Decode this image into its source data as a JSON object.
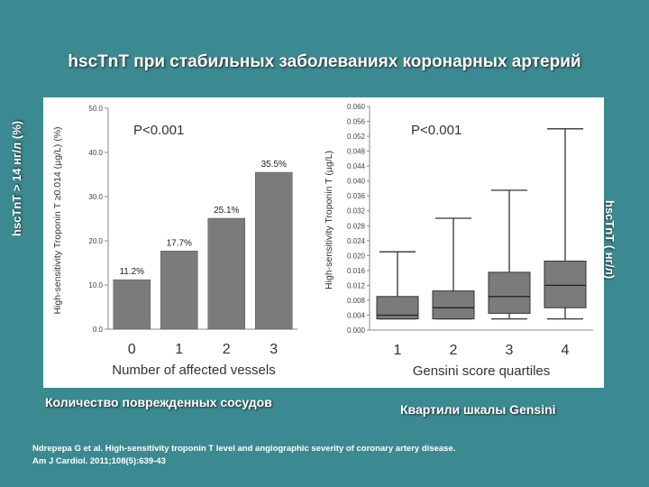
{
  "slide": {
    "title": "hscTnT при стабильных заболеваниях коронарных артерий",
    "left_side_label": "hscTnT > 14 нг/л (%)",
    "right_side_label": "hscTnT ( нг/л)",
    "left_caption": "Количество поврежденных сосудов",
    "right_caption": "Квартили шкалы Gensini",
    "reference_line1": "Ndrepepa G et al. High-sensitivity troponin T level and angiographic severity of coronary artery disease.",
    "reference_line2": "Am J Cardiol. 2011;108(5):639-43"
  },
  "chart_data": [
    {
      "type": "bar",
      "title": "",
      "annotation": "P<0.001",
      "xlabel": "Number of affected vessels",
      "ylabel": "High-sensitivity Troponin T ≥0.014 (µg/L) (%)",
      "categories": [
        "0",
        "1",
        "2",
        "3"
      ],
      "values": [
        11.2,
        17.7,
        25.1,
        35.5
      ],
      "value_labels": [
        "11.2%",
        "17.7%",
        "25.1%",
        "35.5%"
      ],
      "ylim": [
        0,
        50
      ],
      "yticks": [
        "0.0",
        "10.0",
        "20.0",
        "30.0",
        "40.0",
        "50.0"
      ],
      "bar_color": "#7b7b7b"
    },
    {
      "type": "box",
      "title": "",
      "annotation": "P<0.001",
      "xlabel": "Gensini score quartiles",
      "ylabel": "High-sensitivity Troponin T (µg/L)",
      "categories": [
        "1",
        "2",
        "3",
        "4"
      ],
      "boxes": [
        {
          "low": 0.003,
          "q1": 0.003,
          "median": 0.004,
          "q3": 0.009,
          "high": 0.021
        },
        {
          "low": 0.003,
          "q1": 0.003,
          "median": 0.006,
          "q3": 0.0105,
          "high": 0.03
        },
        {
          "low": 0.003,
          "q1": 0.0045,
          "median": 0.009,
          "q3": 0.0155,
          "high": 0.0375
        },
        {
          "low": 0.003,
          "q1": 0.006,
          "median": 0.012,
          "q3": 0.0185,
          "high": 0.054
        }
      ],
      "ylim": [
        0,
        0.06
      ],
      "yticks": [
        "0.000",
        "0.004",
        "0.008",
        "0.012",
        "0.016",
        "0.020",
        "0.024",
        "0.028",
        "0.032",
        "0.036",
        "0.040",
        "0.044",
        "0.048",
        "0.052",
        "0.056",
        "0.060"
      ],
      "box_color": "#7b7b7b"
    }
  ]
}
